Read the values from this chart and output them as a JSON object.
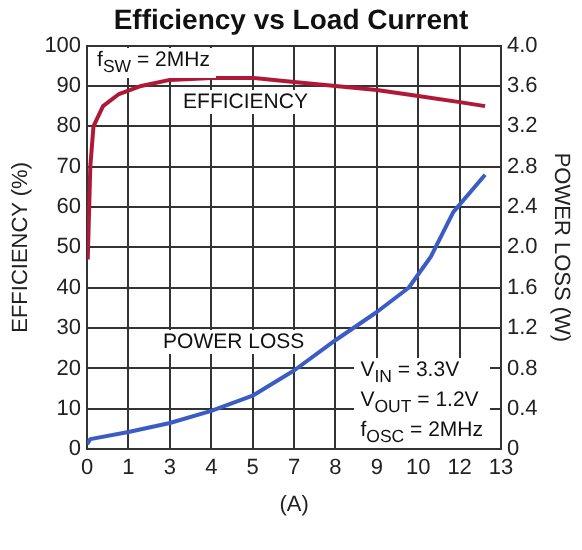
{
  "chart_data": {
    "type": "line",
    "title": "Efficiency vs Load Current",
    "xlabel": "(A)",
    "ylabel": "EFFICIENCY (%)",
    "y2label": "POWER LOSS (W)",
    "xlim": [
      0,
      13
    ],
    "xticks": [
      0,
      {
        "value": 1.3,
        "label": "1"
      },
      {
        "value": 2.6,
        "label": "3"
      },
      {
        "value": 3.9,
        "label": "4"
      },
      {
        "value": 5.2,
        "label": "5"
      },
      {
        "value": 6.5,
        "label": "7"
      },
      {
        "value": 7.8,
        "label": "8"
      },
      {
        "value": 9.1,
        "label": "9"
      },
      {
        "value": 10.4,
        "label": "10"
      },
      {
        "value": 11.7,
        "label": "12"
      },
      13
    ],
    "ylim": [
      0,
      100
    ],
    "yticks": [
      0,
      10,
      20,
      30,
      40,
      50,
      60,
      70,
      80,
      90,
      100
    ],
    "y2lim": [
      0,
      4
    ],
    "y2ticks": [
      0,
      {
        "value": 0.4,
        "label": "0.4"
      },
      {
        "value": 0.8,
        "label": "0.8"
      },
      {
        "value": 1.2,
        "label": "1.2"
      },
      {
        "value": 1.6,
        "label": "1.6"
      },
      {
        "value": 2,
        "label": "2.0"
      },
      {
        "value": 2.4,
        "label": "2.4"
      },
      {
        "value": 2.8,
        "label": "2.8"
      },
      {
        "value": 3.2,
        "label": "3.2"
      },
      {
        "value": 3.6,
        "label": "3.6"
      },
      {
        "value": 4,
        "label": "4.0"
      }
    ],
    "grid": true,
    "legend": false,
    "marker": "none",
    "line_style": "solid",
    "annotations": [
      "f$_{SW}$ = 2MHz",
      "V$_{IN}$ = 3.3V\nV$_{OUT}$ = 1.2V\nf$_{OSC}$ = 2MHz"
    ],
    "series": [
      {
        "name": "EFFICIENCY",
        "color": "#b01838",
        "x": [
          0.02,
          0.1,
          0.2,
          0.5,
          1,
          1.7,
          2.6,
          3.9,
          5.2,
          6.5,
          7.8,
          9.1,
          10.4,
          11.7,
          12.5
        ],
        "values": [
          47,
          70,
          80,
          85,
          88,
          90,
          91.5,
          92,
          92,
          91,
          90,
          89,
          87.5,
          86,
          85
        ]
      },
      {
        "name": "POWER LOSS",
        "color": "#3a5cc4",
        "axis": "y2",
        "x": [
          0,
          0.1,
          1.3,
          2.6,
          3.9,
          5.2,
          6.5,
          7.8,
          9.1,
          10.1,
          10.8,
          11.5,
          12.5
        ],
        "values": [
          0.05,
          0.1,
          0.17,
          0.26,
          0.38,
          0.53,
          0.78,
          1.08,
          1.36,
          1.6,
          1.91,
          2.35,
          2.72
        ]
      }
    ]
  }
}
